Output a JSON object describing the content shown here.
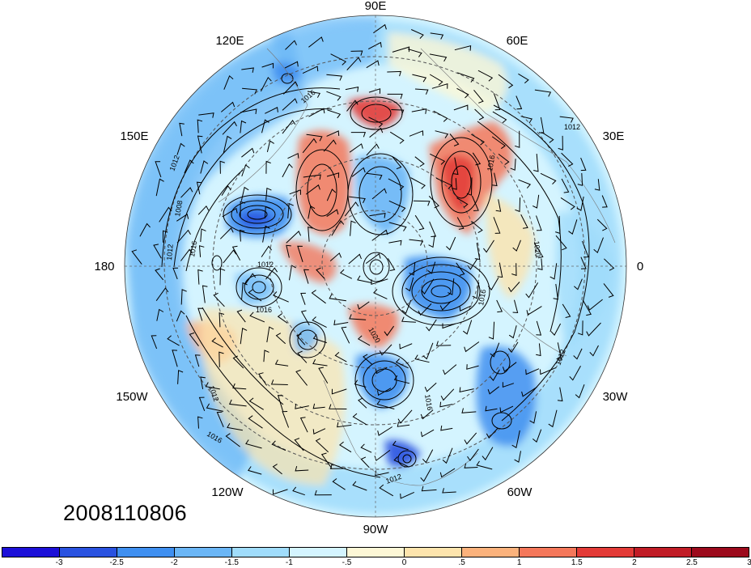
{
  "map": {
    "type": "polar-stereographic",
    "hemisphere": "northern",
    "field_shaded": "anomaly",
    "field_contoured": "sea-level pressure (hPa)",
    "wind_barbs": true,
    "longitude_labels": [
      "90E",
      "60E",
      "30E",
      "0",
      "30W",
      "60W",
      "90W",
      "120W",
      "150W",
      "180",
      "150E",
      "120E"
    ],
    "contour_labels": [
      "1016",
      "1012",
      "1008",
      "1012",
      "1016",
      "1012",
      "1016",
      "1020",
      "1016",
      "1012",
      "1020",
      "1016",
      "1012",
      "1016",
      "1012",
      "1016",
      "1012"
    ]
  },
  "timestamp": "2008110806",
  "colorbar": {
    "colors": [
      "#1c10d8",
      "#2a52e0",
      "#3f8ff0",
      "#6bb6f6",
      "#a0dcfb",
      "#d4f4ff",
      "#fdf7d6",
      "#fde4ad",
      "#fbb27c",
      "#f4775a",
      "#e33b37",
      "#c11c26",
      "#9c0a1c"
    ],
    "ticks": [
      "-3",
      "-2.5",
      "-2",
      "-1.5",
      "-1",
      "-.5",
      "0",
      ".5",
      "1",
      "1.5",
      "2",
      "2.5",
      "3"
    ]
  }
}
